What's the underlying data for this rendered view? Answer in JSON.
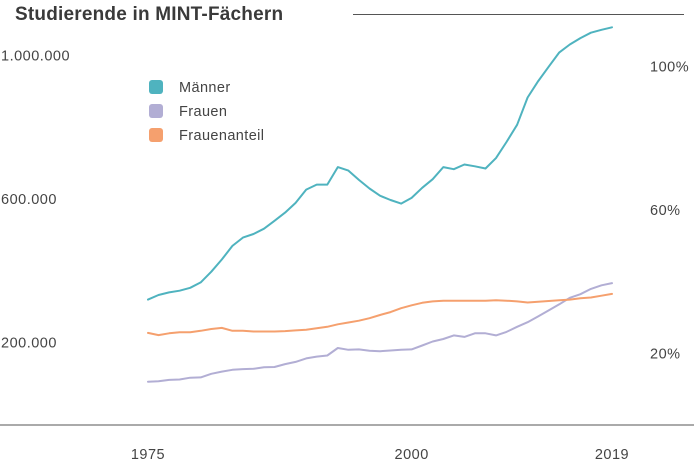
{
  "chart_data": {
    "type": "line",
    "title": "Studierende in MINT-Fächern",
    "xlabel": "",
    "ylabel": "",
    "xlim": [
      1975,
      2021
    ],
    "ylim": [
      0,
      1150000
    ],
    "y2lim": [
      0,
      115
    ],
    "x_ticks": [
      {
        "value": 1975,
        "label": "1975"
      },
      {
        "value": 2000,
        "label": "2000"
      },
      {
        "value": 2019,
        "label": "2019"
      }
    ],
    "y_ticks_left": [
      {
        "value": 200000,
        "label": "200.000"
      },
      {
        "value": 600000,
        "label": "600.000"
      },
      {
        "value": 1000000,
        "label": "1.000.000"
      }
    ],
    "y_ticks_right": [
      {
        "value": 20,
        "label": "20%"
      },
      {
        "value": 60,
        "label": "60%"
      },
      {
        "value": 100,
        "label": "100%"
      }
    ],
    "grid": false,
    "legend_position": "top-left",
    "series": [
      {
        "name": "Männer",
        "axis": "left",
        "color": "#4fb3bf",
        "x": [
          1975,
          1976,
          1977,
          1978,
          1979,
          1980,
          1981,
          1982,
          1983,
          1984,
          1985,
          1986,
          1987,
          1988,
          1989,
          1990,
          1991,
          1992,
          1993,
          1994,
          1995,
          1996,
          1997,
          1998,
          1999,
          2000,
          2001,
          2002,
          2003,
          2004,
          2005,
          2006,
          2007,
          2008,
          2009,
          2010,
          2011,
          2012,
          2013,
          2014,
          2015,
          2016,
          2017,
          2018,
          2019
        ],
        "values": [
          350000,
          363000,
          370000,
          375000,
          383000,
          398000,
          428000,
          462000,
          500000,
          523000,
          533000,
          548000,
          570000,
          593000,
          620000,
          657000,
          671000,
          671000,
          720000,
          710000,
          684000,
          660000,
          640000,
          628000,
          618000,
          634000,
          662000,
          686000,
          720000,
          714000,
          727000,
          722000,
          716000,
          745000,
          790000,
          838000,
          914000,
          960000,
          1000000,
          1040000,
          1062000,
          1080000,
          1095000,
          1103000,
          1110000
        ]
      },
      {
        "name": "Frauen",
        "axis": "left",
        "color": "#b2aed4",
        "x": [
          1975,
          1976,
          1977,
          1978,
          1979,
          1980,
          1981,
          1982,
          1983,
          1984,
          1985,
          1986,
          1987,
          1988,
          1989,
          1990,
          1991,
          1992,
          1993,
          1994,
          1995,
          1996,
          1997,
          1998,
          1999,
          2000,
          2001,
          2002,
          2003,
          2004,
          2005,
          2006,
          2007,
          2008,
          2009,
          2010,
          2011,
          2012,
          2013,
          2014,
          2015,
          2016,
          2017,
          2018,
          2019
        ],
        "values": [
          121000,
          122000,
          126000,
          127000,
          132000,
          133000,
          143000,
          149000,
          154000,
          156000,
          157000,
          161000,
          162000,
          170000,
          176000,
          186000,
          191000,
          194000,
          215000,
          210000,
          211000,
          207000,
          206000,
          208000,
          210000,
          211000,
          222000,
          233000,
          240000,
          250000,
          246000,
          256000,
          256000,
          250000,
          260000,
          274000,
          287000,
          303000,
          320000,
          337000,
          355000,
          365000,
          380000,
          390000,
          396000
        ]
      },
      {
        "name": "Frauenanteil",
        "axis": "right",
        "color": "#f5a06e",
        "x": [
          1975,
          1976,
          1977,
          1978,
          1979,
          1980,
          1981,
          1982,
          1983,
          1984,
          1985,
          1986,
          1987,
          1988,
          1989,
          1990,
          1991,
          1992,
          1993,
          1994,
          1995,
          1996,
          1997,
          1998,
          1999,
          2000,
          2001,
          2002,
          2003,
          2004,
          2005,
          2006,
          2007,
          2008,
          2009,
          2010,
          2011,
          2012,
          2013,
          2014,
          2015,
          2016,
          2017,
          2018,
          2019
        ],
        "values": [
          25.7,
          25.1,
          25.6,
          25.9,
          25.9,
          26.3,
          26.8,
          27.1,
          26.3,
          26.3,
          26.1,
          26.1,
          26.1,
          26.2,
          26.4,
          26.6,
          27.0,
          27.4,
          28.1,
          28.6,
          29.1,
          29.8,
          30.7,
          31.5,
          32.6,
          33.4,
          34.1,
          34.5,
          34.7,
          34.7,
          34.7,
          34.7,
          34.7,
          34.8,
          34.7,
          34.5,
          34.2,
          34.4,
          34.6,
          34.8,
          35.0,
          35.4,
          35.6,
          36.1,
          36.6
        ]
      }
    ]
  }
}
